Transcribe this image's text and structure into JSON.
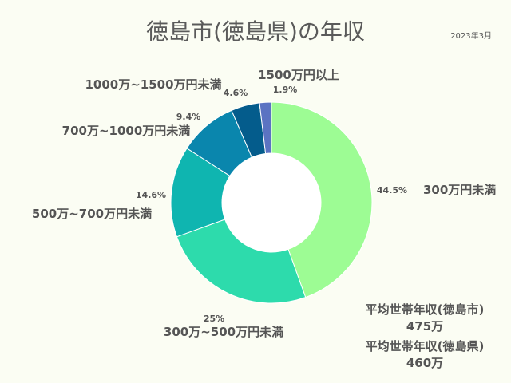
{
  "title": "徳島市(徳島県)の年収",
  "date": "2023年3月",
  "chart_data": {
    "type": "pie",
    "donut": true,
    "categories": [
      "300万円未満",
      "300万~500万円未満",
      "500万~700万円未満",
      "700万~1000万円未満",
      "1000万~1500万円未満",
      "1500万円以上"
    ],
    "values": [
      44.5,
      25,
      14.6,
      9.4,
      4.6,
      1.9
    ],
    "value_labels": [
      "44.5%",
      "25%",
      "14.6%",
      "9.4%",
      "4.6%",
      "1.9%"
    ],
    "colors": [
      "#9dfc94",
      "#2ddbac",
      "#0fb5b0",
      "#0a86ad",
      "#045c8c",
      "#5b73c2"
    ]
  },
  "averages": [
    {
      "label": "平均世帯年収(徳島市)",
      "value": "475万"
    },
    {
      "label": "平均世帯年収(徳島県)",
      "value": "460万"
    }
  ]
}
